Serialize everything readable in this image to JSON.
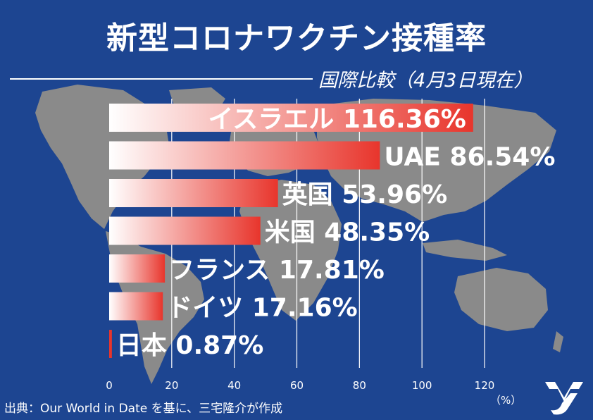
{
  "title": "新型コロナワクチン接種率",
  "subtitle": "国際比較（4月3日現在）",
  "source": "出典：Our World in Date を基に、三宅隆介が作成",
  "colors": {
    "background": "#1d4591",
    "bar": "#e8352c",
    "map": "#8a8a8a",
    "text": "#ffffff"
  },
  "chart_data": {
    "type": "bar",
    "orientation": "horizontal",
    "categories": [
      "イスラエル",
      "UAE",
      "英国",
      "米国",
      "フランス",
      "ドイツ",
      "日本"
    ],
    "values": [
      116.36,
      86.54,
      53.96,
      48.35,
      17.81,
      17.16,
      0.87
    ],
    "value_labels": [
      "116.36%",
      "86.54%",
      "53.96%",
      "48.35%",
      "17.81%",
      "17.16%",
      "0.87%"
    ],
    "x_ticks": [
      "0",
      "20",
      "40",
      "60",
      "80",
      "100",
      "120"
    ],
    "xlim": [
      0,
      120
    ],
    "x_unit_label": "（%）",
    "grid": true
  }
}
